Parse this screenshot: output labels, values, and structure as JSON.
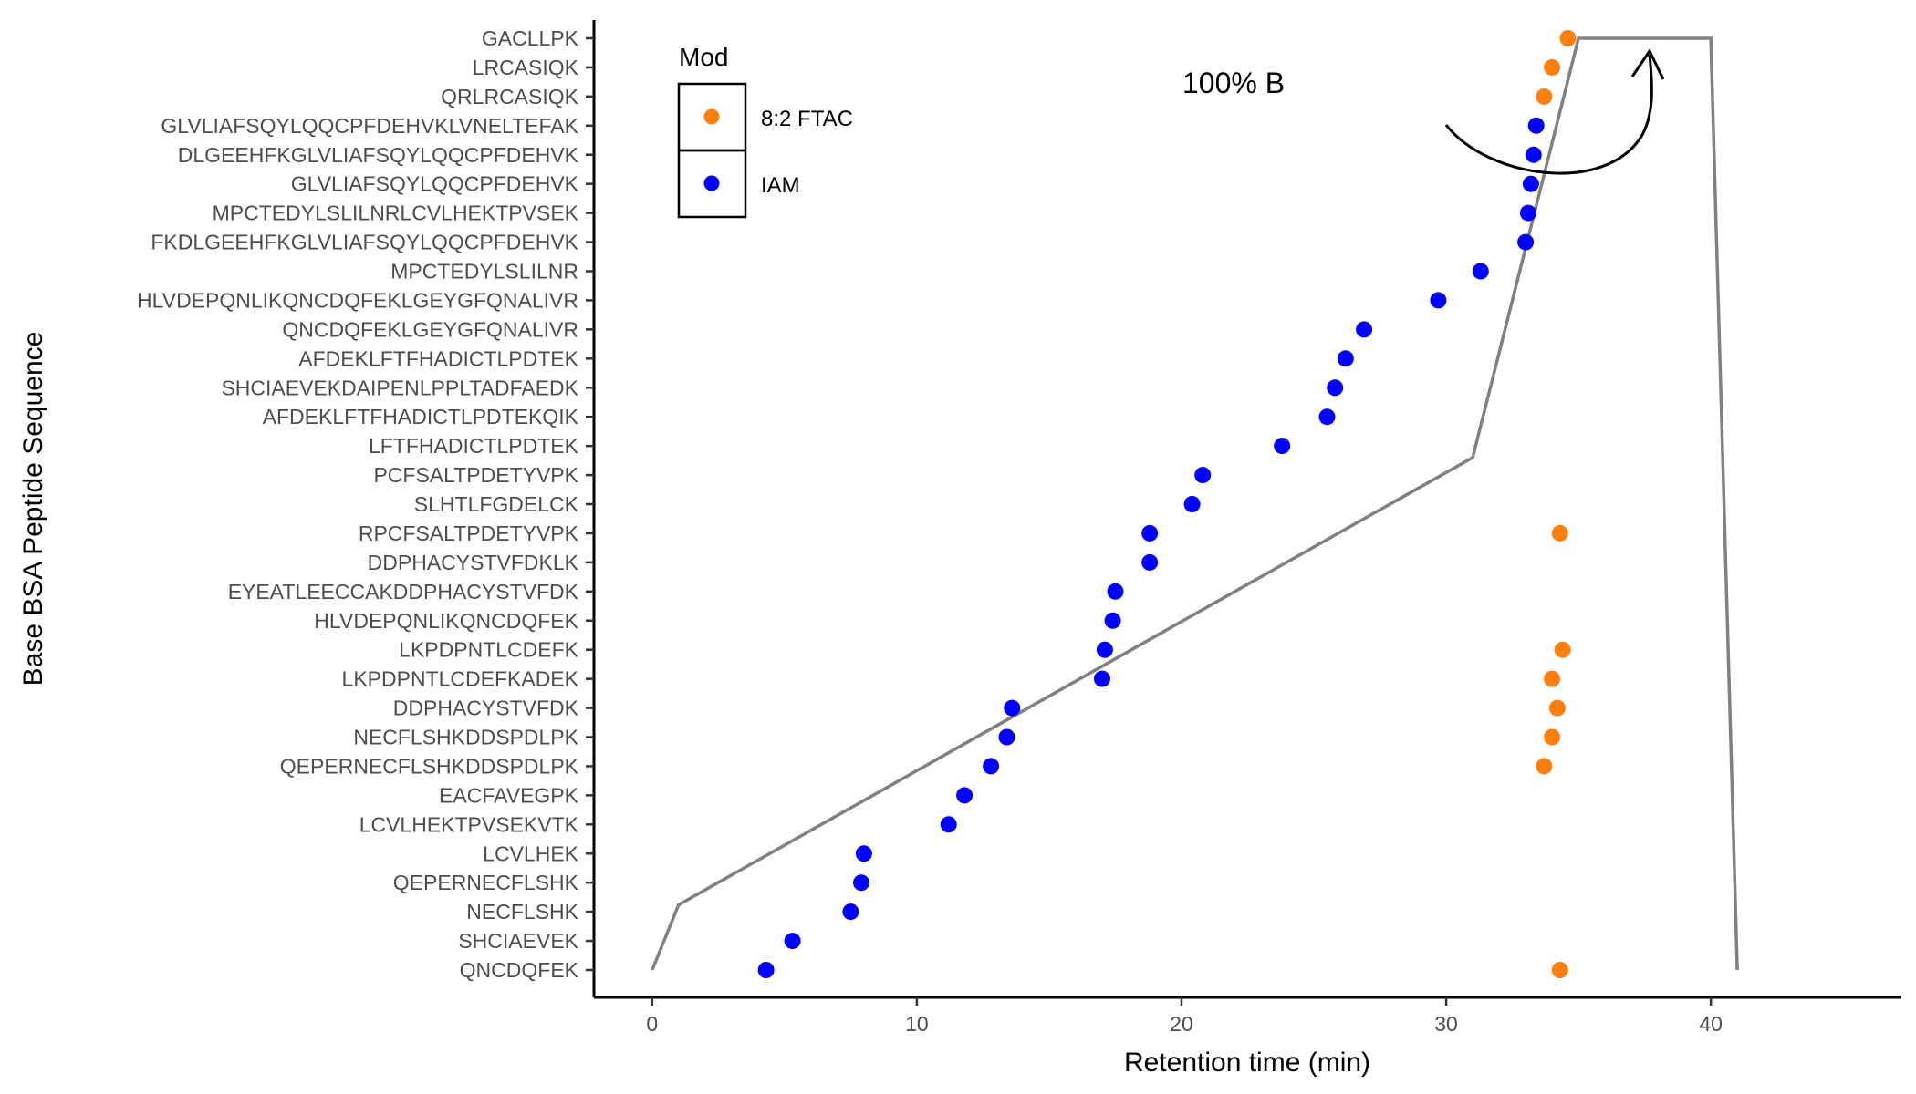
{
  "chart_data": {
    "type": "scatter",
    "xlabel": "Retention time (min)",
    "ylabel": "Base BSA Peptide Sequence",
    "xlim": [
      -2.2,
      47.2
    ],
    "x_ticks": [
      0,
      10,
      20,
      30,
      40
    ],
    "grid": false,
    "legend": {
      "title": "Mod",
      "position": "top-left inside",
      "entries": [
        {
          "label": "8:2 FTAC",
          "color": "#ff7f0e"
        },
        {
          "label": "IAM",
          "color": "#0000ff"
        }
      ]
    },
    "categories": [
      "QNCDQFEK",
      "SHCIAEVEK",
      "NECFLSHK",
      "QEPERNECFLSHK",
      "LCVLHEK",
      "LCVLHEKTPVSEKVTK",
      "EACFAVEGPK",
      "QEPERNECFLSHKDDSPDLPK",
      "NECFLSHKDDSPDLPK",
      "DDPHACYSTVFDK",
      "LKPDPNTLCDEFKADEK",
      "LKPDPNTLCDEFK",
      "HLVDEPQNLIKQNCDQFEK",
      "EYEATLEECCAKDDPHACYSTVFDK",
      "DDPHACYSTVFDKLK",
      "RPCFSALTPDETYVPK",
      "SLHTLFGDELCK",
      "PCFSALTPDETYVPK",
      "LFTFHADICTLPDTEK",
      "AFDEKLFTFHADICTLPDTEKQIK",
      "SHCIAEVEKDAIPENLPPLTADFAEDK",
      "AFDEKLFTFHADICTLPDTEK",
      "QNCDQFEKLGEYGFQNALIVR",
      "HLVDEPQNLIKQNCDQFEKLGEYGFQNALIVR",
      "MPCTEDYLSLILNR",
      "FKDLGEEHFKGLVLIAFSQYLQQCPFDEHVK",
      "MPCTEDYLSLILNRLCVLHEKTPVSEK",
      "GLVLIAFSQYLQQCPFDEHVK",
      "DLGEEHFKGLVLIAFSQYLQQCPFDEHVK",
      "GLVLIAFSQYLQQCPFDEHVKLVNELTEFAK",
      "QRLRCASIQK",
      "LRCASIQK",
      "GACLLPK"
    ],
    "series": [
      {
        "name": "8:2 FTAC",
        "color": "#ff7f0e",
        "points": [
          {
            "y": "QNCDQFEK",
            "x": 34.3
          },
          {
            "y": "QEPERNECFLSHKDDSPDLPK",
            "x": 33.7
          },
          {
            "y": "NECFLSHKDDSPDLPK",
            "x": 34.0
          },
          {
            "y": "DDPHACYSTVFDK",
            "x": 34.2
          },
          {
            "y": "LKPDPNTLCDEFKADEK",
            "x": 34.0
          },
          {
            "y": "LKPDPNTLCDEFK",
            "x": 34.4
          },
          {
            "y": "RPCFSALTPDETYVPK",
            "x": 34.3
          },
          {
            "y": "QRLRCASIQK",
            "x": 33.7
          },
          {
            "y": "LRCASIQK",
            "x": 34.0
          },
          {
            "y": "GACLLPK",
            "x": 34.6
          }
        ]
      },
      {
        "name": "IAM",
        "color": "#0000ff",
        "points": [
          {
            "y": "QNCDQFEK",
            "x": 4.3
          },
          {
            "y": "SHCIAEVEK",
            "x": 5.3
          },
          {
            "y": "NECFLSHK",
            "x": 7.5
          },
          {
            "y": "QEPERNECFLSHK",
            "x": 7.9
          },
          {
            "y": "LCVLHEK",
            "x": 8.0
          },
          {
            "y": "LCVLHEKTPVSEKVTK",
            "x": 11.2
          },
          {
            "y": "EACFAVEGPK",
            "x": 11.8
          },
          {
            "y": "QEPERNECFLSHKDDSPDLPK",
            "x": 12.8
          },
          {
            "y": "NECFLSHKDDSPDLPK",
            "x": 13.4
          },
          {
            "y": "DDPHACYSTVFDK",
            "x": 13.6
          },
          {
            "y": "LKPDPNTLCDEFKADEK",
            "x": 17.0
          },
          {
            "y": "LKPDPNTLCDEFK",
            "x": 17.1
          },
          {
            "y": "HLVDEPQNLIKQNCDQFEK",
            "x": 17.4
          },
          {
            "y": "EYEATLEECCAKDDPHACYSTVFDK",
            "x": 17.5
          },
          {
            "y": "DDPHACYSTVFDKLK",
            "x": 18.8
          },
          {
            "y": "RPCFSALTPDETYVPK",
            "x": 18.8
          },
          {
            "y": "SLHTLFGDELCK",
            "x": 20.4
          },
          {
            "y": "PCFSALTPDETYVPK",
            "x": 20.8
          },
          {
            "y": "LFTFHADICTLPDTEK",
            "x": 23.8
          },
          {
            "y": "AFDEKLFTFHADICTLPDTEKQIK",
            "x": 25.5
          },
          {
            "y": "SHCIAEVEKDAIPENLPPLTADFAEDK",
            "x": 25.8
          },
          {
            "y": "AFDEKLFTFHADICTLPDTEK",
            "x": 26.2
          },
          {
            "y": "QNCDQFEKLGEYGFQNALIVR",
            "x": 26.9
          },
          {
            "y": "HLVDEPQNLIKQNCDQFEKLGEYGFQNALIVR",
            "x": 29.7
          },
          {
            "y": "MPCTEDYLSLILNR",
            "x": 31.3
          },
          {
            "y": "FKDLGEEHFKGLVLIAFSQYLQQCPFDEHVK",
            "x": 33.0
          },
          {
            "y": "MPCTEDYLSLILNRLCVLHEKTPVSEK",
            "x": 33.1
          },
          {
            "y": "GLVLIAFSQYLQQCPFDEHVK",
            "x": 33.2
          },
          {
            "y": "DLGEEHFKGLVLIAFSQYLQQCPFDEHVK",
            "x": 33.3
          },
          {
            "y": "GLVLIAFSQYLQQCPFDEHVKLVNELTEFAK",
            "x": 33.4
          }
        ]
      }
    ],
    "gradient_line": {
      "color": "#808080",
      "points_x": [
        0,
        1,
        31,
        35,
        40,
        41
      ],
      "points_pct_b": [
        0,
        7,
        55,
        100,
        100,
        0
      ]
    },
    "annotations": [
      {
        "text": "100% B"
      }
    ]
  }
}
